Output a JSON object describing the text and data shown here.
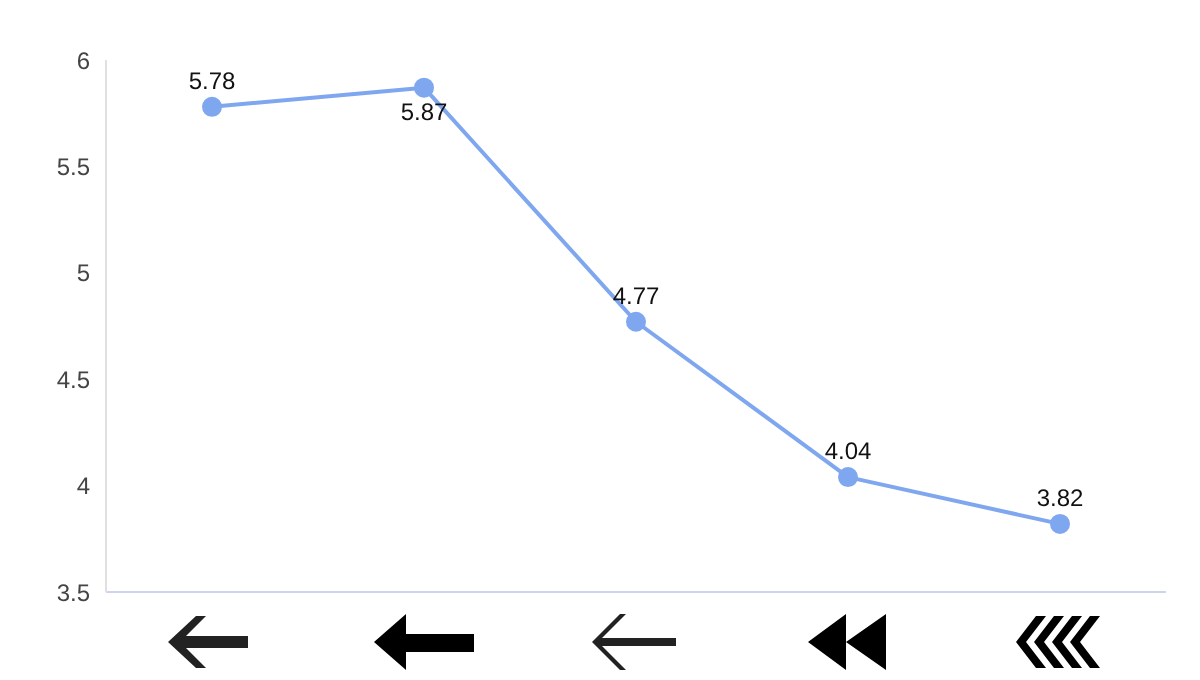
{
  "chart_data": {
    "type": "line",
    "categories": [
      null,
      null,
      null,
      null,
      null
    ],
    "series": [
      {
        "color": "#7fa7ef",
        "values": [
          5.78,
          5.87,
          4.77,
          4.04,
          3.82
        ]
      }
    ],
    "ylim": [
      3.5,
      6
    ],
    "yticks": [
      3.5,
      4,
      4.5,
      5,
      5.5,
      6
    ],
    "grid": false,
    "legend": false,
    "marker": "circle",
    "line_style": "solid",
    "data_labels": true
  }
}
